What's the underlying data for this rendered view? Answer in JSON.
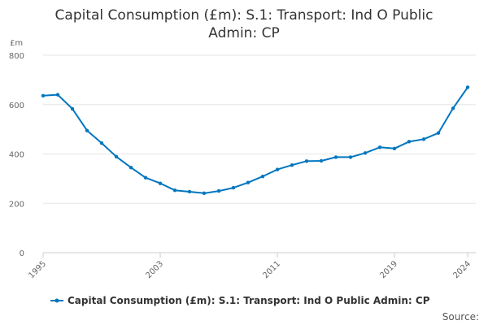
{
  "chart_data": {
    "type": "line",
    "title_lines": [
      "Capital Consumption (£m): S.1: Transport: Ind O Public",
      "Admin: CP"
    ],
    "ylabel": "£m",
    "xlabel": "",
    "ylim": [
      0,
      800
    ],
    "yticks": [
      "0",
      "200",
      "400",
      "600",
      "800"
    ],
    "xlim": [
      1995,
      2024
    ],
    "xticks": [
      "1995",
      "2003",
      "2011",
      "2019",
      "2024"
    ],
    "grid": true,
    "legend_position": "bottom",
    "series": [
      {
        "name": "Capital Consumption (£m): S.1: Transport: Ind O Public Admin: CP",
        "color": "#0076c0",
        "x": [
          1995,
          1996,
          1997,
          1998,
          1999,
          2000,
          2001,
          2002,
          2003,
          2004,
          2005,
          2006,
          2007,
          2008,
          2009,
          2010,
          2011,
          2012,
          2013,
          2014,
          2015,
          2016,
          2017,
          2018,
          2019,
          2020,
          2021,
          2022,
          2023,
          2024
        ],
        "values": [
          636,
          640,
          583,
          495,
          444,
          389,
          345,
          304,
          281,
          253,
          247,
          241,
          250,
          263,
          284,
          309,
          337,
          355,
          371,
          372,
          387,
          387,
          404,
          427,
          422,
          450,
          460,
          485,
          585,
          670
        ]
      }
    ]
  },
  "source_label": "Source:"
}
